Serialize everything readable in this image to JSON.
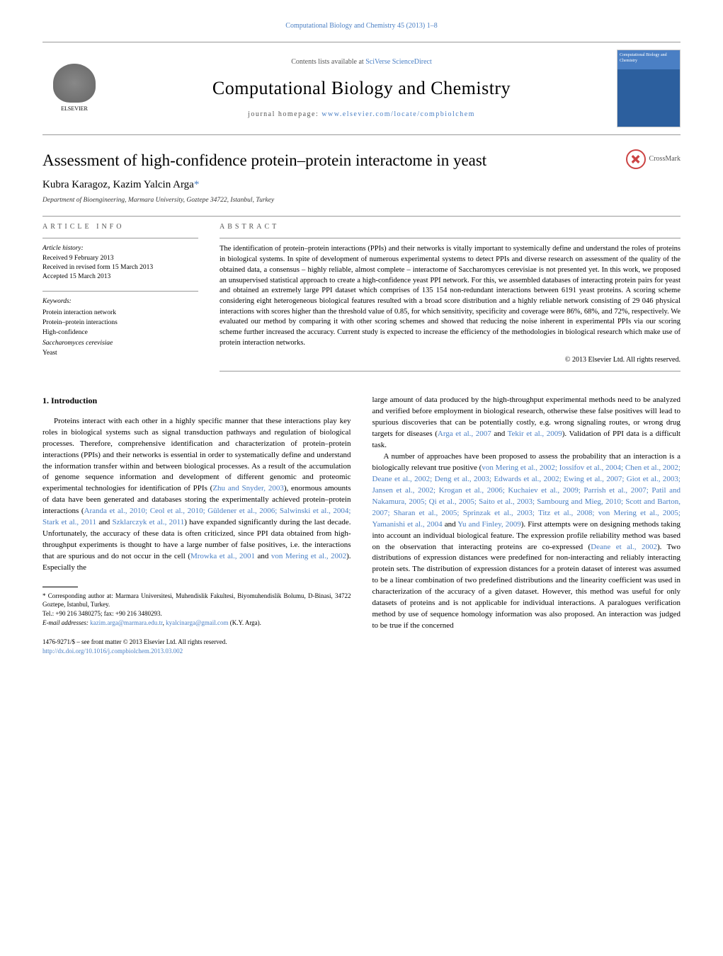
{
  "header_citation": "Computational Biology and Chemistry 45 (2013) 1–8",
  "contents_text": "Contents lists available at ",
  "contents_link": "SciVerse ScienceDirect",
  "journal_name": "Computational Biology and Chemistry",
  "homepage_prefix": "journal homepage: ",
  "homepage_url": "www.elsevier.com/locate/compbiolchem",
  "elsevier_label": "ELSEVIER",
  "cover_text": "Computational Biology and Chemistry",
  "article_title": "Assessment of high-confidence protein–protein interactome in yeast",
  "crossmark_label": "CrossMark",
  "authors": "Kubra Karagoz, Kazim Yalcin Arga",
  "author_marker": "*",
  "affiliation": "Department of Bioengineering, Marmara University, Goztepe 34722, Istanbul, Turkey",
  "article_info_header": "ARTICLE INFO",
  "abstract_header": "ABSTRACT",
  "history": {
    "label": "Article history:",
    "received": "Received 9 February 2013",
    "revised": "Received in revised form 15 March 2013",
    "accepted": "Accepted 15 March 2013"
  },
  "keywords": {
    "label": "Keywords:",
    "items": [
      "Protein interaction network",
      "Protein–protein interactions",
      "High-confidence",
      "Saccharomyces cerevisiae",
      "Yeast"
    ]
  },
  "abstract_text": "The identification of protein–protein interactions (PPIs) and their networks is vitally important to systemically define and understand the roles of proteins in biological systems. In spite of development of numerous experimental systems to detect PPIs and diverse research on assessment of the quality of the obtained data, a consensus – highly reliable, almost complete – interactome of Saccharomyces cerevisiae is not presented yet. In this work, we proposed an unsupervised statistical approach to create a high-confidence yeast PPI network. For this, we assembled databases of interacting protein pairs for yeast and obtained an extremely large PPI dataset which comprises of 135 154 non-redundant interactions between 6191 yeast proteins. A scoring scheme considering eight heterogeneous biological features resulted with a broad score distribution and a highly reliable network consisting of 29 046 physical interactions with scores higher than the threshold value of 0.85, for which sensitivity, specificity and coverage were 86%, 68%, and 72%, respectively. We evaluated our method by comparing it with other scoring schemes and showed that reducing the noise inherent in experimental PPIs via our scoring scheme further increased the accuracy. Current study is expected to increase the efficiency of the methodologies in biological research which make use of protein interaction networks.",
  "copyright": "© 2013 Elsevier Ltd. All rights reserved.",
  "intro_title": "1. Introduction",
  "col1_p1_a": "Proteins interact with each other in a highly specific manner that these interactions play key roles in biological systems such as signal transduction pathways and regulation of biological processes. Therefore, comprehensive identification and characterization of protein–protein interactions (PPIs) and their networks is essential in order to systematically define and understand the information transfer within and between biological processes. As a result of the accumulation of genome sequence information and development of different genomic and proteomic experimental technologies for identification of PPIs (",
  "col1_ref1": "Zhu and Snyder, 2003",
  "col1_p1_b": "), enormous amounts of data have been generated and databases storing the experimentally achieved protein–protein interactions (",
  "col1_ref2": "Aranda et al., 2010; Ceol et al., 2010; Güldener et al., 2006; Salwinski et al., 2004; Stark et al., 2011",
  "col1_p1_c": " and ",
  "col1_ref3": "Szklarczyk et al., 2011",
  "col1_p1_d": ") have expanded significantly during the last decade. Unfortunately, the accuracy of these data is often criticized, since PPI data obtained from high-throughput experiments is thought to have a large number of false positives, i.e. the interactions that are spurious and do not occur in the cell (",
  "col1_ref4": "Mrowka et al., 2001",
  "col1_p1_e": " and ",
  "col1_ref5": "von Mering et al., 2002",
  "col1_p1_f": "). Especially the",
  "col2_p1_a": "large amount of data produced by the high-throughput experimental methods need to be analyzed and verified before employment in biological research, otherwise these false positives will lead to spurious discoveries that can be potentially costly, e.g. wrong signaling routes, or wrong drug targets for diseases (",
  "col2_ref1": "Arga et al., 2007",
  "col2_p1_b": " and ",
  "col2_ref2": "Tekir et al., 2009",
  "col2_p1_c": "). Validation of PPI data is a difficult task.",
  "col2_p2_a": "A number of approaches have been proposed to assess the probability that an interaction is a biologically relevant true positive (",
  "col2_ref3": "von Mering et al., 2002; Iossifov et al., 2004; Chen et al., 2002; Deane et al., 2002; Deng et al., 2003; Edwards et al., 2002; Ewing et al., 2007; Giot et al., 2003; Jansen et al., 2002; Krogan et al., 2006; Kuchaiev et al., 2009; Parrish et al., 2007; Patil and Nakamura, 2005; Qi et al., 2005; Saito et al., 2003; Sambourg and Mieg, 2010; Scott and Barton, 2007; Sharan et al., 2005; Sprinzak et al., 2003; Titz et al., 2008; von Mering et al., 2005; Yamanishi et al., 2004",
  "col2_p2_b": " and ",
  "col2_ref4": "Yu and Finley, 2009",
  "col2_p2_c": "). First attempts were on designing methods taking into account an individual biological feature. The expression profile reliability method was based on the observation that interacting proteins are co-expressed (",
  "col2_ref5": "Deane et al., 2002",
  "col2_p2_d": "). Two distributions of expression distances were predefined for non-interacting and reliably interacting protein sets. The distribution of expression distances for a protein dataset of interest was assumed to be a linear combination of two predefined distributions and the linearity coefficient was used in characterization of the accuracy of a given dataset. However, this method was useful for only datasets of proteins and is not applicable for individual interactions. A paralogues verification method by use of sequence homology information was also proposed. An interaction was judged to be true if the concerned",
  "footnote": {
    "marker": "*",
    "text": " Corresponding author at: Marmara Universitesi, Muhendislik Fakultesi, Biyomuhendislik Bolumu, D-Binasi, 34722 Goztepe, Istanbul, Turkey.",
    "tel": "Tel.: +90 216 3480275; fax: +90 216 3480293.",
    "email_label": "E-mail addresses: ",
    "email1": "kazim.arga@marmara.edu.tr",
    "email_sep": ", ",
    "email2": "kyalcinarga@gmail.com",
    "email_suffix": " (K.Y. Arga)."
  },
  "front_matter": {
    "issn": "1476-9271/$ – see front matter © 2013 Elsevier Ltd. All rights reserved.",
    "doi": "http://dx.doi.org/10.1016/j.compbiolchem.2013.03.002"
  },
  "colors": {
    "link": "#4a7fc4",
    "text": "#000000",
    "muted": "#555555",
    "border": "#999999"
  }
}
